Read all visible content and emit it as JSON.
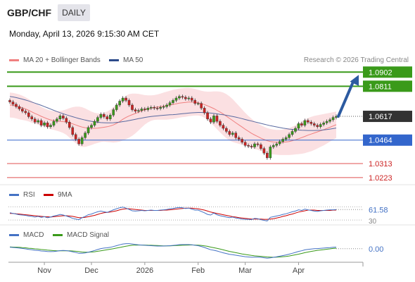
{
  "header": {
    "pair": "GBP/CHF",
    "period": "DAILY"
  },
  "timestamp": "Monday, April 13, 2026 9:15:30 AM CET",
  "legend": {
    "bollinger": {
      "label": "MA 20 + Bollinger Bands",
      "color": "#f08080"
    },
    "ma50": {
      "label": "MA 50",
      "color": "#2c4a8a"
    },
    "rsi": {
      "label": "RSI",
      "color": "#4472c4"
    },
    "rsi_ma": {
      "label": "9MA",
      "color": "#cc0000"
    },
    "macd": {
      "label": "MACD",
      "color": "#4472c4"
    },
    "macd_signal": {
      "label": "MACD Signal",
      "color": "#3a9a1a"
    }
  },
  "credit": "Research © 2026 Trading Central",
  "chart_data": [
    {
      "type": "candlestick",
      "x_ticks": [
        "Nov",
        "Dec",
        "2026",
        "Feb",
        "Mar",
        "Apr"
      ],
      "ylim": [
        1.0195,
        1.0935
      ],
      "last_price": {
        "label": "1.0617",
        "value": 1.0617
      },
      "levels": [
        {
          "label": "1.0902",
          "value": 1.0902,
          "kind": "resistance"
        },
        {
          "label": "1.0811",
          "value": 1.0811,
          "kind": "resistance"
        },
        {
          "label": "1.0464",
          "value": 1.0464,
          "kind": "pivot"
        },
        {
          "label": "1.0313",
          "value": 1.0313,
          "kind": "support"
        },
        {
          "label": "1.0223",
          "value": 1.0223,
          "kind": "support"
        }
      ],
      "colors": {
        "resistance": "#3a9a1a",
        "pivot": "#3366cc",
        "support": "#e05050",
        "up": "#3a9a1a",
        "down": "#cc2222",
        "arrow": "#2c5aa0"
      },
      "close": [
        1.071,
        1.0695,
        1.068,
        1.0665,
        1.065,
        1.064,
        1.0615,
        1.06,
        1.058,
        1.059,
        1.056,
        1.0575,
        1.055,
        1.056,
        1.0585,
        1.06,
        1.062,
        1.0605,
        1.058,
        1.0545,
        1.05,
        1.047,
        1.044,
        1.048,
        1.051,
        1.0545,
        1.056,
        1.0585,
        1.061,
        1.063,
        1.0615,
        1.06,
        1.0625,
        1.066,
        1.069,
        1.0715,
        1.0735,
        1.072,
        1.069,
        1.066,
        1.065,
        1.0655,
        1.0665,
        1.066,
        1.067,
        1.0675,
        1.067,
        1.0668,
        1.0675,
        1.068,
        1.069,
        1.0705,
        1.072,
        1.0735,
        1.0745,
        1.074,
        1.073,
        1.0735,
        1.072,
        1.07,
        1.07,
        1.067,
        1.064,
        1.06,
        1.058,
        1.062,
        1.0585,
        1.056,
        1.054,
        1.052,
        1.05,
        1.051,
        1.048,
        1.047,
        1.045,
        1.043,
        1.0425,
        1.042,
        1.044,
        1.0435,
        1.041,
        1.038,
        1.035,
        1.042,
        1.043,
        1.044,
        1.0455,
        1.047,
        1.048,
        1.05,
        1.052,
        1.054,
        1.057,
        1.056,
        1.059,
        1.058,
        1.057,
        1.056,
        1.055,
        1.0565,
        1.0575,
        1.0585,
        1.0595,
        1.061,
        1.0617
      ],
      "ma20": [
        1.069,
        1.0688,
        1.0684,
        1.0678,
        1.0672,
        1.0665,
        1.0656,
        1.0646,
        1.0636,
        1.0627,
        1.0617,
        1.0609,
        1.0601,
        1.0594,
        1.059,
        1.0587,
        1.0585,
        1.0583,
        1.058,
        1.0575,
        1.0569,
        1.0562,
        1.0554,
        1.0548,
        1.0544,
        1.0542,
        1.054,
        1.054,
        1.0541,
        1.0544,
        1.0547,
        1.055,
        1.0555,
        1.0562,
        1.0572,
        1.0584,
        1.0598,
        1.061,
        1.062,
        1.0628,
        1.0636,
        1.0644,
        1.0652,
        1.0659,
        1.0665,
        1.067,
        1.0674,
        1.0677,
        1.068,
        1.0683,
        1.0686,
        1.069,
        1.0694,
        1.0698,
        1.0702,
        1.0705,
        1.0707,
        1.0709,
        1.0709,
        1.0708,
        1.0705,
        1.07,
        1.0693,
        1.0685,
        1.0676,
        1.0667,
        1.0656,
        1.0645,
        1.0632,
        1.0618,
        1.0604,
        1.059,
        1.0576,
        1.0562,
        1.0548,
        1.0534,
        1.0521,
        1.0508,
        1.0497,
        1.0487,
        1.0477,
        1.0468,
        1.046,
        1.0455,
        1.0452,
        1.045,
        1.0449,
        1.045,
        1.0452,
        1.0455,
        1.046,
        1.0466,
        1.0473,
        1.048,
        1.0488,
        1.0496,
        1.0503,
        1.051,
        1.0517,
        1.0524,
        1.0531,
        1.0539,
        1.0547,
        1.0555,
        1.0563
      ],
      "bb_upper": [
        1.077,
        1.0768,
        1.0764,
        1.0758,
        1.075,
        1.074,
        1.0728,
        1.0716,
        1.0702,
        1.069,
        1.0678,
        1.0668,
        1.066,
        1.0654,
        1.065,
        1.065,
        1.0652,
        1.0656,
        1.0662,
        1.067,
        1.0676,
        1.068,
        1.068,
        1.0676,
        1.0668,
        1.0658,
        1.0648,
        1.064,
        1.0636,
        1.0636,
        1.064,
        1.0648,
        1.066,
        1.0676,
        1.0694,
        1.0714,
        1.0734,
        1.075,
        1.076,
        1.0764,
        1.0764,
        1.0762,
        1.0758,
        1.0754,
        1.0752,
        1.0752,
        1.0754,
        1.0758,
        1.0764,
        1.077,
        1.0776,
        1.0782,
        1.0788,
        1.0792,
        1.0796,
        1.0798,
        1.08,
        1.08,
        1.0798,
        1.0794,
        1.0788,
        1.0782,
        1.0778,
        1.0776,
        1.0776,
        1.0778,
        1.0778,
        1.0776,
        1.077,
        1.076,
        1.0746,
        1.0728,
        1.0706,
        1.0684,
        1.0662,
        1.064,
        1.062,
        1.0602,
        1.0586,
        1.0572,
        1.056,
        1.055,
        1.0542,
        1.0536,
        1.0532,
        1.053,
        1.053,
        1.0532,
        1.0536,
        1.0542,
        1.055,
        1.056,
        1.0572,
        1.0584,
        1.0596,
        1.0606,
        1.0614,
        1.062,
        1.0624,
        1.0628,
        1.0632,
        1.0636,
        1.064,
        1.0644,
        1.0648
      ],
      "bb_lower": [
        1.061,
        1.0608,
        1.0604,
        1.0598,
        1.0594,
        1.059,
        1.0584,
        1.0576,
        1.057,
        1.0564,
        1.0556,
        1.055,
        1.0542,
        1.0534,
        1.053,
        1.0524,
        1.0518,
        1.051,
        1.0498,
        1.048,
        1.0462,
        1.0444,
        1.0428,
        1.042,
        1.042,
        1.0426,
        1.0432,
        1.044,
        1.0446,
        1.0452,
        1.0454,
        1.0452,
        1.045,
        1.0448,
        1.045,
        1.0454,
        1.0462,
        1.047,
        1.048,
        1.0492,
        1.0508,
        1.0526,
        1.0546,
        1.0564,
        1.0578,
        1.0588,
        1.0594,
        1.0596,
        1.0596,
        1.0596,
        1.0596,
        1.0598,
        1.06,
        1.0604,
        1.0608,
        1.0612,
        1.0614,
        1.0618,
        1.062,
        1.0622,
        1.0622,
        1.0618,
        1.0608,
        1.0594,
        1.0576,
        1.0556,
        1.0534,
        1.0514,
        1.0494,
        1.0476,
        1.0462,
        1.0452,
        1.0446,
        1.044,
        1.0434,
        1.0428,
        1.0422,
        1.0414,
        1.0408,
        1.0402,
        1.0394,
        1.0386,
        1.0378,
        1.0374,
        1.0372,
        1.037,
        1.0368,
        1.0368,
        1.0368,
        1.0368,
        1.037,
        1.0372,
        1.0374,
        1.0376,
        1.038,
        1.0386,
        1.0392,
        1.04,
        1.041,
        1.042,
        1.043,
        1.0442,
        1.0454,
        1.0466,
        1.0478
      ],
      "ma50": [
        1.0745,
        1.0742,
        1.0738,
        1.0733,
        1.0728,
        1.0722,
        1.0716,
        1.0709,
        1.0702,
        1.0695,
        1.0688,
        1.068,
        1.0672,
        1.0664,
        1.0656,
        1.0648,
        1.0641,
        1.0634,
        1.0627,
        1.0621,
        1.0615,
        1.0609,
        1.0603,
        1.0598,
        1.0593,
        1.0589,
        1.0585,
        1.0582,
        1.0579,
        1.0577,
        1.0576,
        1.0575,
        1.0575,
        1.0576,
        1.0578,
        1.058,
        1.0583,
        1.0586,
        1.059,
        1.0594,
        1.0598,
        1.0602,
        1.0606,
        1.061,
        1.0613,
        1.0616,
        1.0618,
        1.062,
        1.0622,
        1.0624,
        1.0626,
        1.0627,
        1.0628,
        1.063,
        1.0632,
        1.0634,
        1.0636,
        1.0638,
        1.064,
        1.0641,
        1.0642,
        1.0642,
        1.0641,
        1.064,
        1.0638,
        1.0636,
        1.0633,
        1.063,
        1.0627,
        1.0624,
        1.062,
        1.0616,
        1.0612,
        1.0607,
        1.0602,
        1.0597,
        1.0592,
        1.0587,
        1.0582,
        1.0577,
        1.0572,
        1.0567,
        1.0562,
        1.0557,
        1.0553,
        1.0549,
        1.0545,
        1.0541,
        1.0538,
        1.0535,
        1.0533,
        1.0531,
        1.0529,
        1.0528,
        1.0527,
        1.0526,
        1.0526,
        1.0526,
        1.0527,
        1.0528,
        1.053,
        1.0532,
        1.0535,
        1.0538,
        1.0542
      ]
    },
    {
      "type": "line",
      "name": "RSI",
      "ylim": [
        28,
        75
      ],
      "ref_lines": [
        70,
        30
      ],
      "y_ticks": [
        "30"
      ],
      "last_label": "61.58",
      "rsi": [
        52,
        50,
        48,
        46,
        45,
        44,
        42,
        41,
        39,
        41,
        38,
        40,
        37,
        39,
        42,
        44,
        47,
        45,
        42,
        39,
        35,
        33,
        31,
        37,
        41,
        46,
        48,
        52,
        55,
        57,
        55,
        53,
        57,
        61,
        64,
        67,
        69,
        66,
        62,
        58,
        57,
        58,
        59,
        58,
        59,
        60,
        59,
        59,
        60,
        61,
        62,
        64,
        65,
        67,
        68,
        67,
        65,
        66,
        63,
        60,
        60,
        56,
        52,
        47,
        45,
        51,
        46,
        43,
        41,
        39,
        37,
        39,
        36,
        35,
        33,
        32,
        32,
        31,
        35,
        34,
        31,
        29,
        27,
        38,
        40,
        42,
        44,
        47,
        49,
        52,
        55,
        57,
        61,
        59,
        63,
        61,
        59,
        57,
        56,
        58,
        59,
        60,
        61,
        61,
        61.58
      ],
      "rsi_ma": [
        50,
        50,
        49,
        48,
        47,
        46,
        45,
        44,
        43,
        42,
        41,
        40,
        40,
        39,
        40,
        41,
        42,
        43,
        43,
        42,
        41,
        39,
        37,
        37,
        38,
        40,
        42,
        44,
        47,
        50,
        52,
        53,
        54,
        56,
        58,
        61,
        63,
        64,
        64,
        63,
        62,
        61,
        60,
        59,
        59,
        59,
        59,
        59,
        59,
        60,
        60,
        61,
        62,
        63,
        64,
        65,
        66,
        66,
        66,
        65,
        64,
        62,
        60,
        57,
        54,
        52,
        50,
        48,
        46,
        44,
        42,
        40,
        39,
        37,
        36,
        35,
        34,
        33,
        33,
        33,
        33,
        32,
        32,
        33,
        34,
        36,
        38,
        41,
        43,
        46,
        48,
        51,
        54,
        56,
        58,
        60,
        60,
        60,
        59,
        59,
        59,
        59,
        59,
        60,
        60
      ]
    },
    {
      "type": "line",
      "name": "MACD",
      "ylim": [
        -0.009,
        0.006
      ],
      "zero_label": "0.00",
      "macd": [
        0.0012,
        0.001,
        0.0008,
        0.0005,
        0.0002,
        -0.0001,
        -0.0005,
        -0.0008,
        -0.0012,
        -0.0014,
        -0.0018,
        -0.0019,
        -0.0022,
        -0.0023,
        -0.0022,
        -0.0019,
        -0.0015,
        -0.0014,
        -0.0015,
        -0.0019,
        -0.0024,
        -0.003,
        -0.0036,
        -0.0036,
        -0.0033,
        -0.0027,
        -0.0021,
        -0.0014,
        -0.0006,
        0.0001,
        0.0005,
        0.0007,
        0.0011,
        0.0017,
        0.0024,
        0.0031,
        0.0037,
        0.004,
        0.004,
        0.0037,
        0.0034,
        0.0031,
        0.0029,
        0.0027,
        0.0025,
        0.0024,
        0.0022,
        0.0021,
        0.0021,
        0.0021,
        0.0022,
        0.0024,
        0.0026,
        0.0029,
        0.0032,
        0.0033,
        0.0033,
        0.0033,
        0.0031,
        0.0027,
        0.0024,
        0.0018,
        0.001,
        0.0001,
        -0.0008,
        -0.0012,
        -0.0018,
        -0.0025,
        -0.0032,
        -0.0038,
        -0.0044,
        -0.0047,
        -0.0051,
        -0.0055,
        -0.0059,
        -0.0063,
        -0.0065,
        -0.0067,
        -0.0066,
        -0.0066,
        -0.0068,
        -0.0071,
        -0.0075,
        -0.0072,
        -0.0068,
        -0.0064,
        -0.0059,
        -0.0054,
        -0.0049,
        -0.0043,
        -0.0036,
        -0.0029,
        -0.0021,
        -0.0016,
        -0.0009,
        -0.0005,
        -0.0002,
        0.0,
        0.0001,
        0.0003,
        0.0005,
        0.0007,
        0.0009,
        0.0011,
        0.0013
      ],
      "signal": [
        0.0014,
        0.0013,
        0.0012,
        0.0011,
        0.0009,
        0.0007,
        0.0004,
        0.0002,
        -0.0001,
        -0.0003,
        -0.0006,
        -0.0008,
        -0.0011,
        -0.0013,
        -0.0015,
        -0.0016,
        -0.0016,
        -0.0016,
        -0.0016,
        -0.0016,
        -0.0018,
        -0.002,
        -0.0023,
        -0.0026,
        -0.0027,
        -0.0027,
        -0.0026,
        -0.0024,
        -0.002,
        -0.0016,
        -0.0012,
        -0.0008,
        -0.0004,
        0.0,
        0.0005,
        0.001,
        0.0015,
        0.002,
        0.0024,
        0.0027,
        0.0028,
        0.0029,
        0.0029,
        0.0029,
        0.0028,
        0.0027,
        0.0026,
        0.0025,
        0.0024,
        0.0023,
        0.0023,
        0.0023,
        0.0024,
        0.0025,
        0.0026,
        0.0027,
        0.0028,
        0.0029,
        0.003,
        0.0029,
        0.0028,
        0.0026,
        0.0023,
        0.0019,
        0.0013,
        0.0008,
        0.0003,
        -0.0003,
        -0.0009,
        -0.0015,
        -0.0021,
        -0.0026,
        -0.0031,
        -0.0036,
        -0.0041,
        -0.0045,
        -0.0049,
        -0.0053,
        -0.0056,
        -0.0058,
        -0.006,
        -0.0062,
        -0.0065,
        -0.0066,
        -0.0067,
        -0.0066,
        -0.0065,
        -0.0063,
        -0.0061,
        -0.0057,
        -0.0053,
        -0.0048,
        -0.0043,
        -0.0037,
        -0.0031,
        -0.0026,
        -0.0021,
        -0.0017,
        -0.0013,
        -0.001,
        -0.0007,
        -0.0004,
        -0.0001,
        0.0002,
        0.0004
      ]
    }
  ]
}
